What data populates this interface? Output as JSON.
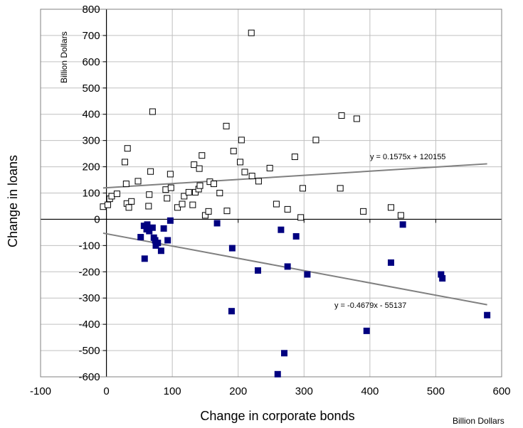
{
  "chart_data": {
    "type": "scatter",
    "title": "",
    "xlabel": "Change in corporate bonds",
    "ylabel": "Change in loans",
    "x_unit": "Billion Dollars",
    "y_unit": "Billion Dollars",
    "xlim": [
      -100,
      600
    ],
    "ylim": [
      -600,
      800
    ],
    "xticks": [
      -100,
      0,
      100,
      200,
      300,
      400,
      500,
      600
    ],
    "yticks": [
      800,
      700,
      600,
      500,
      400,
      300,
      200,
      100,
      0,
      -100,
      -200,
      -300,
      -400,
      -500,
      -600
    ],
    "grid": true,
    "legend": "none",
    "series": [
      {
        "marker": "open-square",
        "color": "#000000",
        "points": [
          [
            -5,
            48
          ],
          [
            2,
            55
          ],
          [
            5,
            78
          ],
          [
            8,
            88
          ],
          [
            16,
            97
          ],
          [
            28,
            218
          ],
          [
            30,
            135
          ],
          [
            31,
            60
          ],
          [
            32,
            270
          ],
          [
            34,
            45
          ],
          [
            38,
            68
          ],
          [
            48,
            145
          ],
          [
            64,
            50
          ],
          [
            65,
            94
          ],
          [
            67,
            182
          ],
          [
            70,
            410
          ],
          [
            90,
            113
          ],
          [
            92,
            80
          ],
          [
            97,
            172
          ],
          [
            98,
            120
          ],
          [
            108,
            45
          ],
          [
            115,
            58
          ],
          [
            118,
            88
          ],
          [
            125,
            103
          ],
          [
            131,
            55
          ],
          [
            133,
            208
          ],
          [
            135,
            103
          ],
          [
            140,
            115
          ],
          [
            141,
            193
          ],
          [
            142,
            128
          ],
          [
            145,
            243
          ],
          [
            150,
            15
          ],
          [
            155,
            30
          ],
          [
            157,
            143
          ],
          [
            163,
            135
          ],
          [
            172,
            100
          ],
          [
            182,
            355
          ],
          [
            183,
            32
          ],
          [
            193,
            260
          ],
          [
            203,
            218
          ],
          [
            205,
            302
          ],
          [
            210,
            180
          ],
          [
            220,
            710
          ],
          [
            221,
            165
          ],
          [
            231,
            145
          ],
          [
            248,
            195
          ],
          [
            258,
            58
          ],
          [
            275,
            38
          ],
          [
            286,
            238
          ],
          [
            295,
            7
          ],
          [
            298,
            118
          ],
          [
            318,
            302
          ],
          [
            355,
            118
          ],
          [
            357,
            395
          ],
          [
            380,
            383
          ],
          [
            390,
            30
          ],
          [
            432,
            45
          ],
          [
            447,
            15
          ]
        ]
      },
      {
        "marker": "filled-square",
        "color": "#000080",
        "points": [
          [
            52,
            -68
          ],
          [
            57,
            -25
          ],
          [
            58,
            -150
          ],
          [
            61,
            -38
          ],
          [
            62,
            -20
          ],
          [
            65,
            -45
          ],
          [
            70,
            -32
          ],
          [
            72,
            -70
          ],
          [
            74,
            -80
          ],
          [
            75,
            -100
          ],
          [
            78,
            -90
          ],
          [
            83,
            -120
          ],
          [
            87,
            -35
          ],
          [
            93,
            -80
          ],
          [
            97,
            -5
          ],
          [
            168,
            -15
          ],
          [
            190,
            -350
          ],
          [
            191,
            -110
          ],
          [
            230,
            -195
          ],
          [
            260,
            -590
          ],
          [
            265,
            -40
          ],
          [
            270,
            -510
          ],
          [
            275,
            -180
          ],
          [
            288,
            -65
          ],
          [
            305,
            -210
          ],
          [
            395,
            -425
          ],
          [
            432,
            -165
          ],
          [
            450,
            -20
          ],
          [
            508,
            -210
          ],
          [
            510,
            -225
          ],
          [
            578,
            -365
          ]
        ]
      }
    ],
    "trendlines": [
      {
        "slope": 0.1575,
        "intercept": 120.155,
        "x_range": [
          -5,
          578
        ],
        "label": "y = 0.1575x + 120155"
      },
      {
        "slope": -0.4679,
        "intercept": -55.137,
        "x_range": [
          -5,
          578
        ],
        "label": "y = -0.4679x - 55137"
      }
    ]
  }
}
